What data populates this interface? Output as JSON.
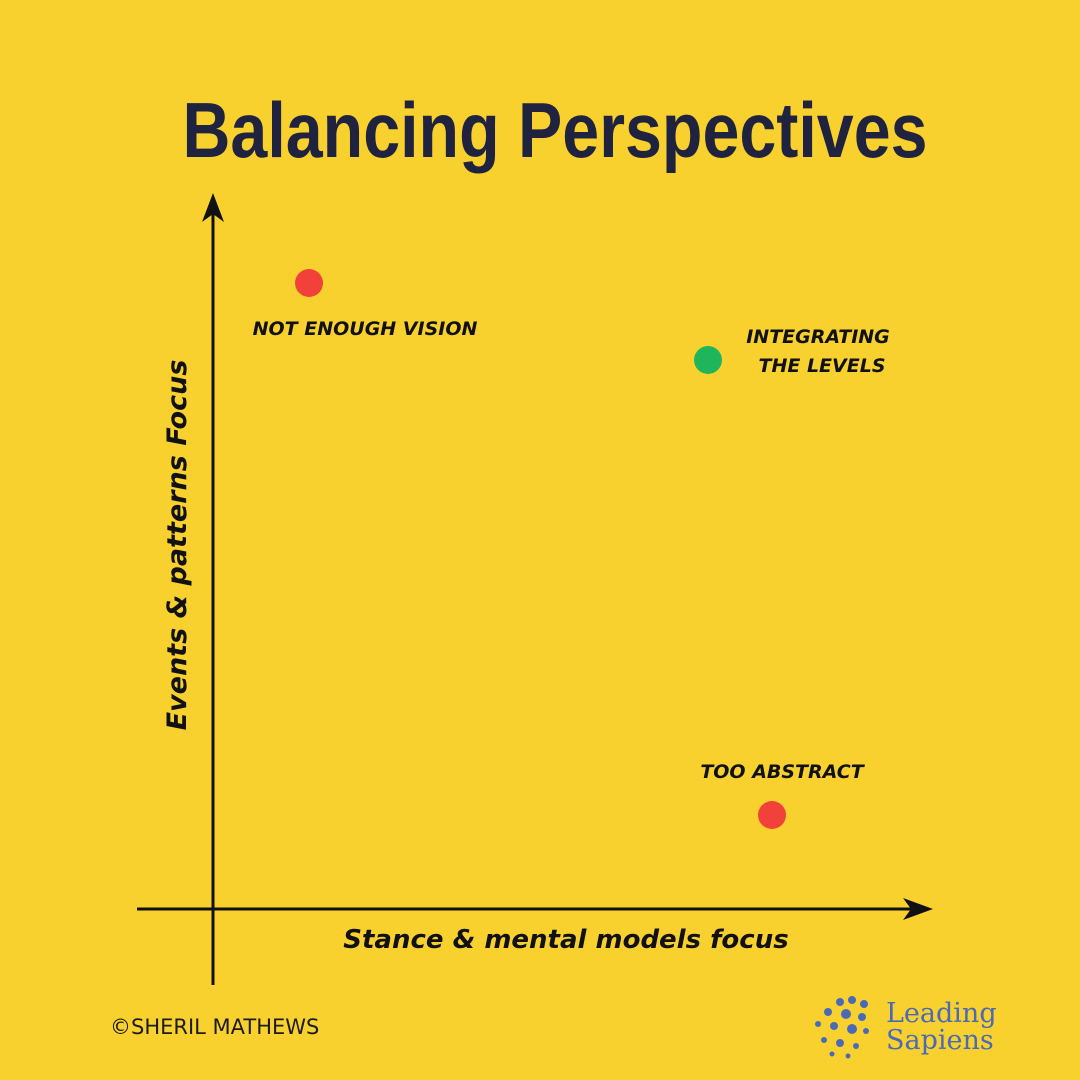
{
  "title": "Balancing Perspectives",
  "y_axis_label": "Events & patterns Focus",
  "x_axis_label": "Stance & mental models focus",
  "points": [
    {
      "label_lines": [
        "NOT ENOUGH VISION"
      ]
    },
    {
      "label_lines": [
        "INTEGRATING",
        "THE LEVELS"
      ]
    },
    {
      "label_lines": [
        "TOO ABSTRACT"
      ]
    }
  ],
  "credit": "©SHERIL MATHEWS",
  "logo": {
    "lines": [
      "Leading",
      "Sapiens"
    ]
  }
}
